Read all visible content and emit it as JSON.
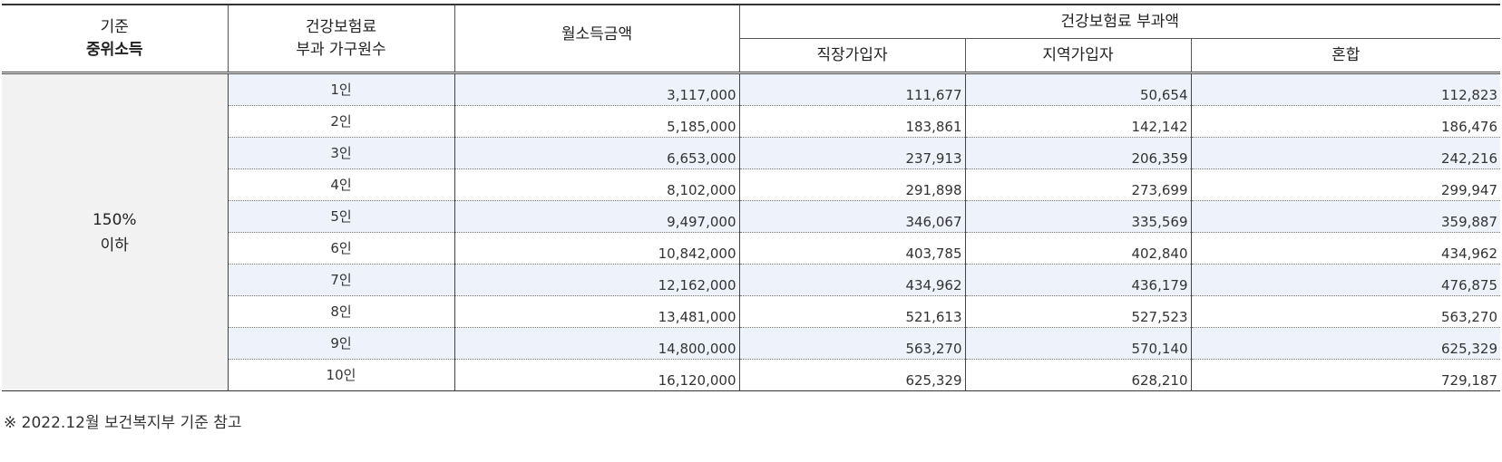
{
  "headers": {
    "median_income_line1": "기준",
    "median_income_line2": "중위소득",
    "household_line1": "건강보험료",
    "household_line2": "부과 가구원수",
    "monthly_income": "월소득금액",
    "premium_group": "건강보험료 부과액",
    "employee": "직장가입자",
    "regional": "지역가입자",
    "mixed": "혼합"
  },
  "group": {
    "line1": "150%",
    "line2": "이하"
  },
  "rows": [
    {
      "household": "1인",
      "income": "3,117,000",
      "employee": "111,677",
      "regional": "50,654",
      "mixed": "112,823"
    },
    {
      "household": "2인",
      "income": "5,185,000",
      "employee": "183,861",
      "regional": "142,142",
      "mixed": "186,476"
    },
    {
      "household": "3인",
      "income": "6,653,000",
      "employee": "237,913",
      "regional": "206,359",
      "mixed": "242,216"
    },
    {
      "household": "4인",
      "income": "8,102,000",
      "employee": "291,898",
      "regional": "273,699",
      "mixed": "299,947"
    },
    {
      "household": "5인",
      "income": "9,497,000",
      "employee": "346,067",
      "regional": "335,569",
      "mixed": "359,887"
    },
    {
      "household": "6인",
      "income": "10,842,000",
      "employee": "403,785",
      "regional": "402,840",
      "mixed": "434,962"
    },
    {
      "household": "7인",
      "income": "12,162,000",
      "employee": "434,962",
      "regional": "436,179",
      "mixed": "476,875"
    },
    {
      "household": "8인",
      "income": "13,481,000",
      "employee": "521,613",
      "regional": "527,523",
      "mixed": "563,270"
    },
    {
      "household": "9인",
      "income": "14,800,000",
      "employee": "563,270",
      "regional": "570,140",
      "mixed": "625,329"
    },
    {
      "household": "10인",
      "income": "16,120,000",
      "employee": "625,329",
      "regional": "628,210",
      "mixed": "729,187"
    }
  ],
  "footnote": "※ 2022.12월 보건복지부 기준 참고"
}
